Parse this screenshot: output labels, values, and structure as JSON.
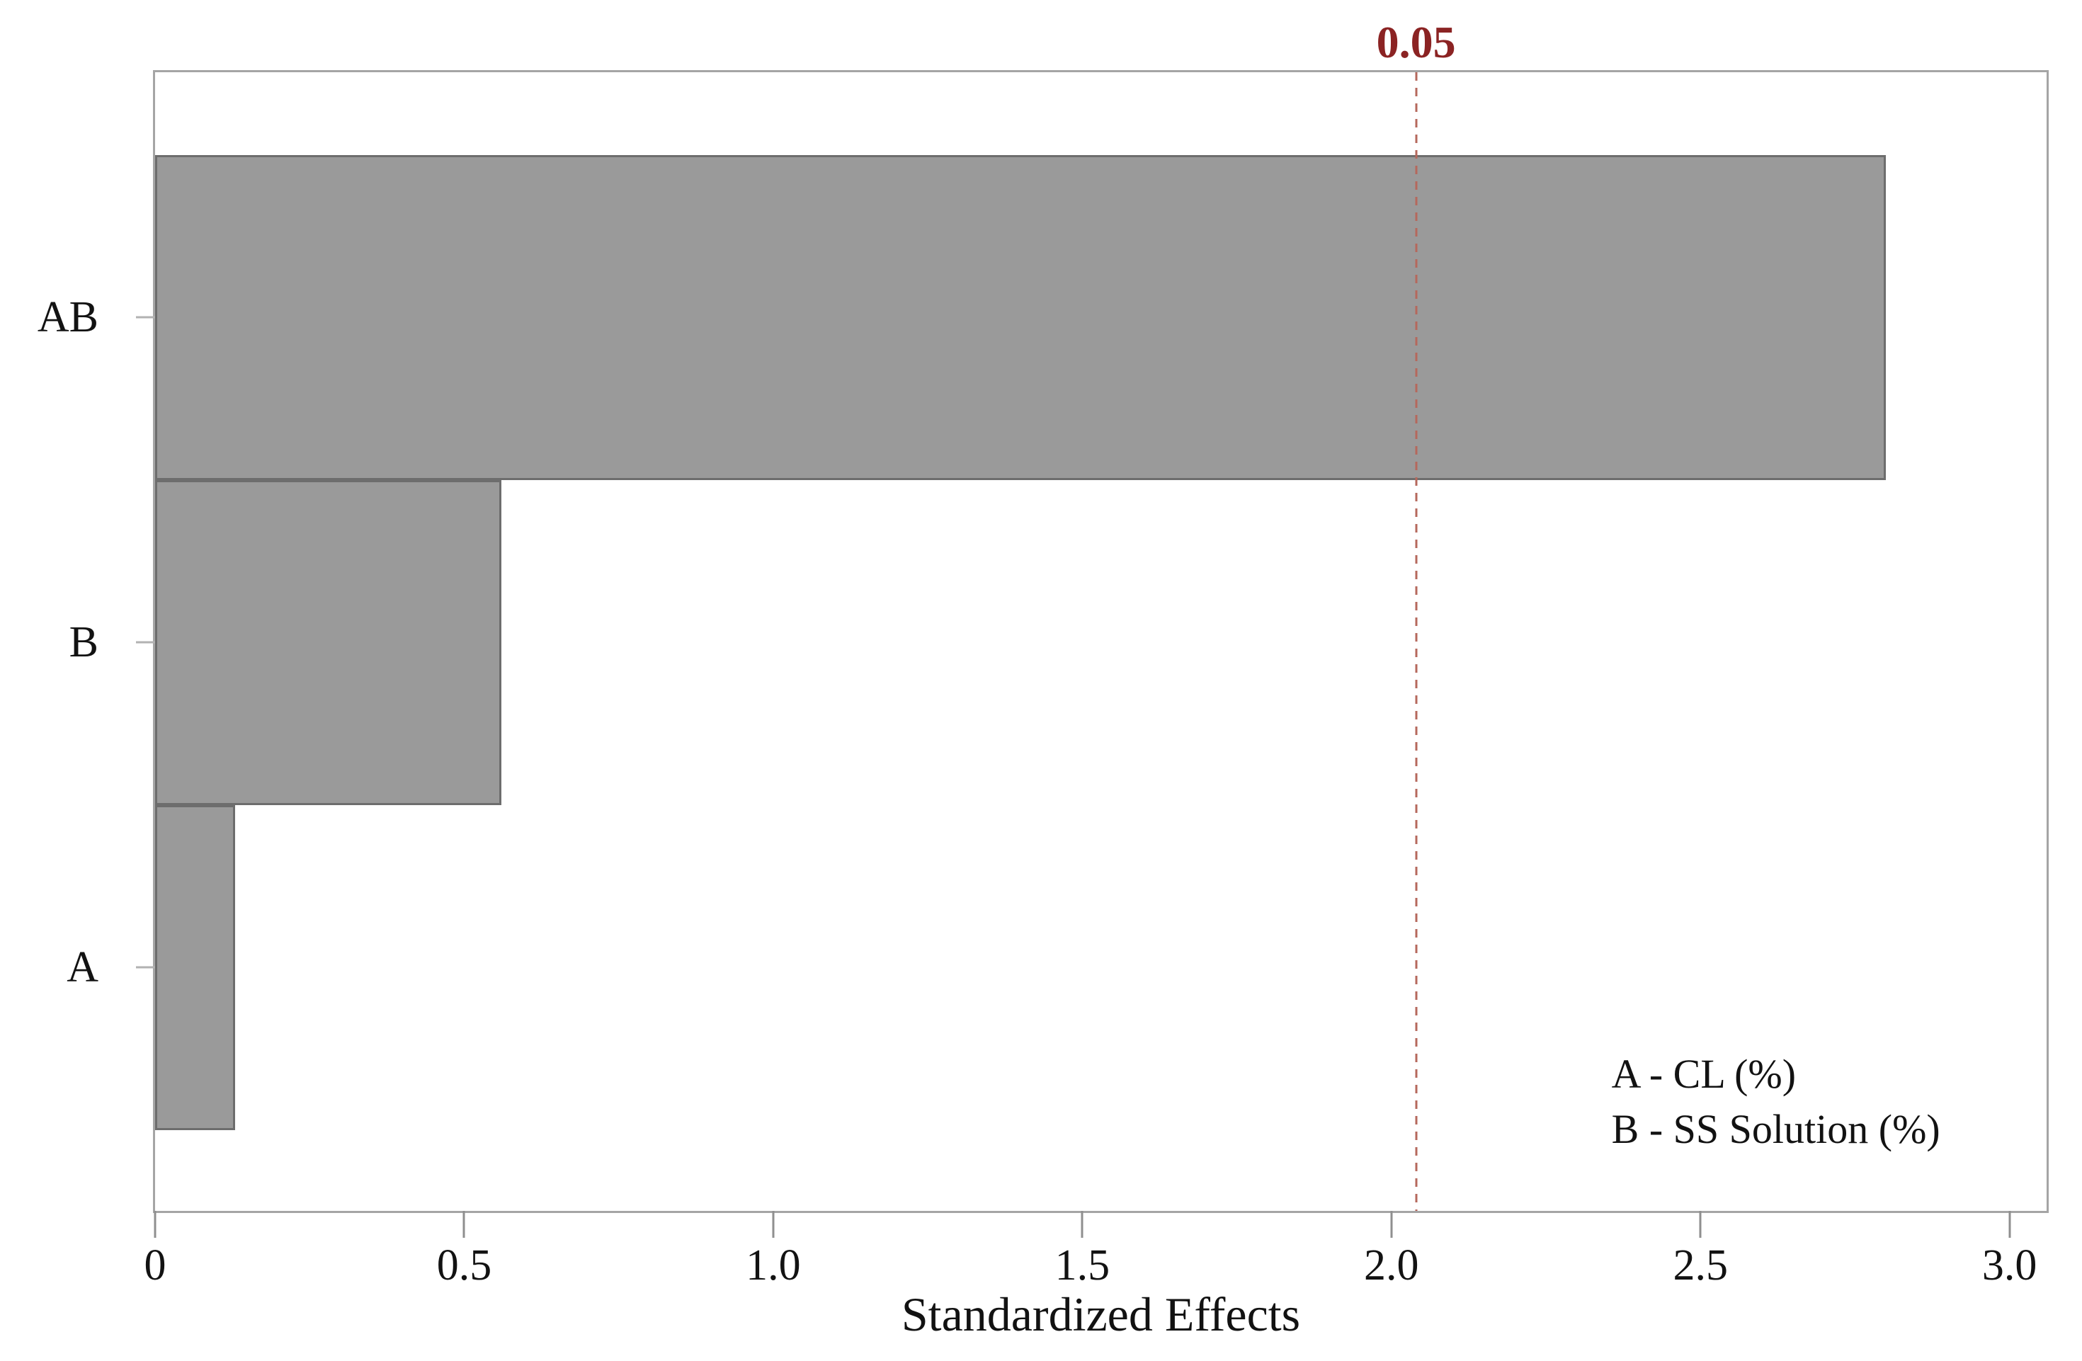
{
  "chart_data": {
    "type": "bar",
    "orientation": "horizontal",
    "title": "",
    "categories": [
      "AB",
      "B",
      "A"
    ],
    "values": [
      2.8,
      0.56,
      0.13
    ],
    "xlabel": "Standardized Effects",
    "ylabel": "",
    "xlim": [
      0,
      3.06
    ],
    "xticks": [
      0,
      0.5,
      1.0,
      1.5,
      2.0,
      2.5,
      3.0
    ],
    "xtick_labels": [
      "0",
      "0.5",
      "1.0",
      "1.5",
      "2.0",
      "2.5",
      "3.0"
    ],
    "grid": false,
    "legend_position": "bottom-right",
    "legend_entries": [
      "A - CL (%)",
      "B - SS Solution (%)"
    ],
    "reference_line": {
      "value": 2.04,
      "label": "0.05",
      "style": "dashed"
    },
    "colors": {
      "bar_fill": "#9a9a9a",
      "bar_border": "#6d6d6d",
      "plot_border": "#a5a5a5",
      "reference_line": "#b5685c",
      "reference_label": "#8b2323",
      "text": "#121212",
      "background": "#ffffff"
    }
  }
}
